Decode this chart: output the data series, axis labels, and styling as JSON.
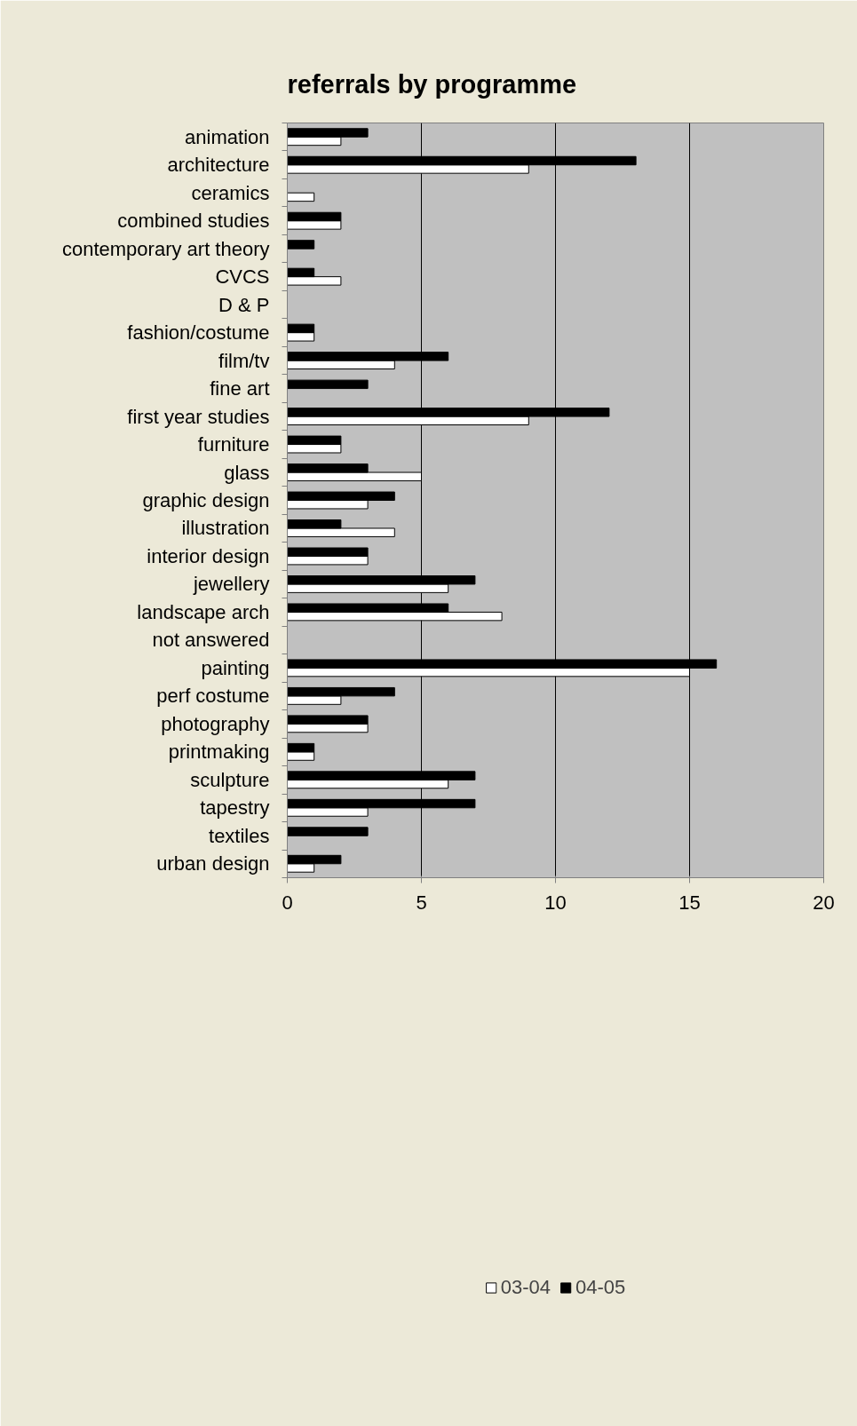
{
  "chart_data": {
    "type": "bar",
    "orientation": "horizontal",
    "title": "referrals by programme",
    "categories": [
      "animation",
      "architecture",
      "ceramics",
      "combined studies",
      "contemporary art theory",
      "CVCS",
      "D & P",
      "fashion/costume",
      "film/tv",
      "fine art",
      "first year studies",
      "furniture",
      "glass",
      "graphic design",
      "illustration",
      "interior design",
      "jewellery",
      "landscape arch",
      "not answered",
      "painting",
      "perf costume",
      "photography",
      "printmaking",
      "sculpture",
      "tapestry",
      "textiles",
      "urban design"
    ],
    "series": [
      {
        "name": "03-04",
        "color": "#ffffff",
        "values": [
          2,
          9,
          1,
          2,
          0,
          2,
          0,
          1,
          4,
          0,
          9,
          2,
          5,
          3,
          4,
          3,
          6,
          8,
          0,
          15,
          2,
          3,
          1,
          6,
          3,
          0,
          1
        ]
      },
      {
        "name": "04-05",
        "color": "#000000",
        "values": [
          3,
          13,
          0,
          2,
          1,
          1,
          0,
          1,
          6,
          3,
          12,
          2,
          3,
          4,
          2,
          3,
          7,
          6,
          0,
          16,
          4,
          3,
          1,
          7,
          7,
          3,
          2
        ]
      }
    ],
    "xlim": [
      0,
      20
    ],
    "xticks": [
      0,
      5,
      10,
      15,
      20
    ],
    "grid": "x",
    "legend": "bottom"
  }
}
